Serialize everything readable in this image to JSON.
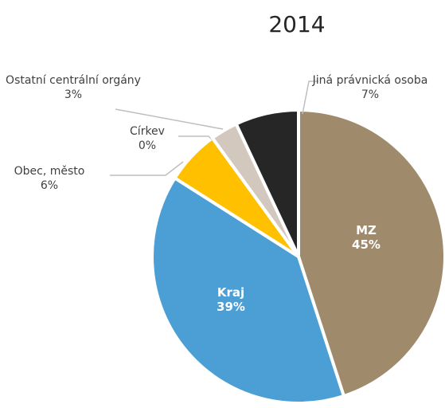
{
  "chart_data": {
    "type": "pie",
    "title": "2014",
    "categories": [
      "MZ",
      "Kraj",
      "Obec, město",
      "Církev",
      "Ostatní centrální orgány",
      "Jiná právnická osoba"
    ],
    "values": [
      45,
      39,
      6,
      0,
      3,
      7
    ],
    "value_labels": [
      "45%",
      "39%",
      "6%",
      "0%",
      "3%",
      "7%"
    ],
    "colors": [
      "#a08a6c",
      "#4b9fd5",
      "#ffc000",
      "#7f7f7f",
      "#d3c8bd",
      "#262626"
    ]
  }
}
